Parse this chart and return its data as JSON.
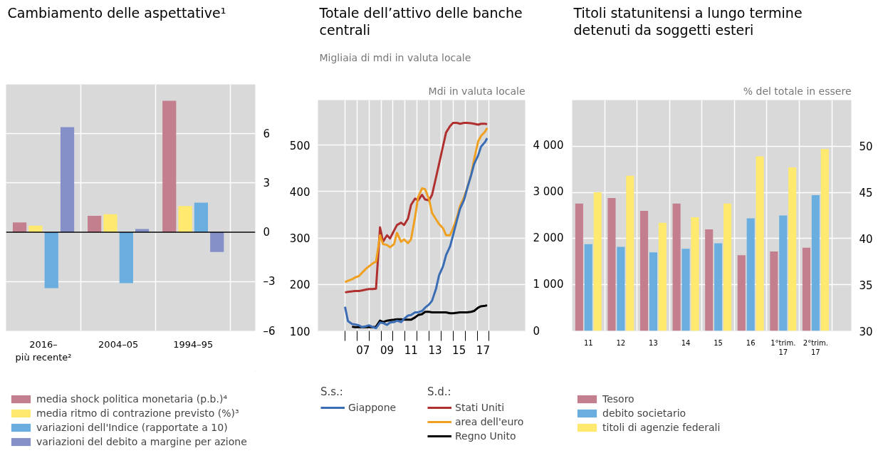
{
  "chart_data": [
    {
      "type": "bar",
      "title": "Cambiamento delle aspettative¹",
      "categories": [
        "2016–\npiù recente²",
        "2004–05",
        "1994–95"
      ],
      "series": [
        {
          "name": "media shock politica monetaria (p.b.)⁴",
          "color": "#c47f8f",
          "values": [
            0.6,
            1.0,
            8.0
          ]
        },
        {
          "name": "media ritmo di contrazione previsto (%)³",
          "color": "#ffe96e",
          "values": [
            0.4,
            1.1,
            1.6
          ]
        },
        {
          "name": "variazioni dell'Indice (rapportate a 10)",
          "color": "#6aaee0",
          "values": [
            -3.4,
            -3.1,
            1.8
          ]
        },
        {
          "name": "variazioni del debito a margine per azione",
          "color": "#8590c8",
          "values": [
            6.4,
            0.2,
            -1.2
          ]
        }
      ],
      "ylim": [
        -6,
        9
      ],
      "yticks": [
        {
          "value": -6,
          "label": "–6"
        },
        {
          "value": -3,
          "label": "–3"
        },
        0,
        3,
        6
      ],
      "grid": true,
      "legend": "bottom"
    },
    {
      "type": "line",
      "title": "Totale dell’attivo delle banche centrali",
      "ylabel": "Migliaia di mdi in valuta locale",
      "y2label": "Mdi in valuta locale",
      "annotations": [
        "S.s.:",
        "S.d.:"
      ],
      "x": [
        "2006-01",
        "2006-04",
        "2006-08",
        "2006-11",
        "2007-03",
        "2007-06",
        "2007-10",
        "2008-01",
        "2008-05",
        "2008-08",
        "2008-12",
        "2009-03",
        "2009-07",
        "2009-10",
        "2010-02",
        "2010-05",
        "2010-09",
        "2010-12",
        "2011-04",
        "2011-07",
        "2011-11",
        "2012-02",
        "2012-06",
        "2012-09",
        "2013-01",
        "2013-04",
        "2013-08",
        "2013-11",
        "2014-03",
        "2014-06",
        "2014-10",
        "2015-01",
        "2015-05",
        "2015-08",
        "2015-12",
        "2016-03",
        "2016-07",
        "2016-10",
        "2017-02",
        "2017-05",
        "2017-09",
        "2017-11"
      ],
      "series": [
        {
          "name": "Giappone",
          "color": "#3b6db5",
          "axis": "y",
          "values": [
            152,
            121,
            115,
            114,
            112,
            108,
            110,
            112,
            108,
            106,
            118,
            117,
            113,
            118,
            119,
            122,
            119,
            126,
            133,
            134,
            140,
            140,
            143,
            150,
            157,
            165,
            191,
            220,
            239,
            263,
            282,
            306,
            339,
            363,
            382,
            406,
            435,
            459,
            478,
            497,
            507,
            515
          ]
        },
        {
          "name": "Stati Uniti",
          "color": "#b03030",
          "axis": "y2",
          "values": [
            830,
            840,
            850,
            860,
            860,
            870,
            890,
            900,
            900,
            910,
            2230,
            1920,
            2060,
            1990,
            2160,
            2280,
            2330,
            2280,
            2420,
            2710,
            2850,
            2810,
            2930,
            2830,
            2810,
            2930,
            3310,
            3600,
            3980,
            4270,
            4410,
            4480,
            4480,
            4460,
            4480,
            4480,
            4470,
            4460,
            4440,
            4460,
            4460,
            4450
          ]
        },
        {
          "name": "area dell'euro",
          "color": "#f0a020",
          "axis": "y2",
          "values": [
            1050,
            1080,
            1110,
            1150,
            1180,
            1250,
            1340,
            1390,
            1460,
            1490,
            2060,
            1870,
            1850,
            1800,
            1870,
            2110,
            1920,
            1970,
            1890,
            1970,
            2450,
            2880,
            3070,
            3050,
            2830,
            2540,
            2400,
            2300,
            2210,
            2060,
            2060,
            2210,
            2450,
            2690,
            2880,
            3070,
            3360,
            3690,
            4080,
            4200,
            4290,
            4370
          ]
        },
        {
          "name": "Regno Unito",
          "color": "#000000",
          "axis": "y2",
          "values": [
            null,
            null,
            90,
            80,
            80,
            80,
            80,
            80,
            80,
            90,
            220,
            190,
            220,
            230,
            240,
            250,
            250,
            240,
            240,
            240,
            290,
            340,
            360,
            410,
            410,
            400,
            400,
            400,
            400,
            400,
            380,
            380,
            390,
            400,
            400,
            400,
            410,
            430,
            500,
            530,
            540,
            550
          ]
        }
      ],
      "xlim": [
        "2003-10",
        "2021-01"
      ],
      "xticks": [
        {
          "value": "2006-01-01",
          "label": null
        },
        {
          "value": "2007-01-01",
          "label": null
        },
        {
          "value": "2008-01-01",
          "label": null
        },
        {
          "value": "2009-01-01",
          "label": null
        },
        {
          "value": "2010-01-01",
          "label": null
        },
        {
          "value": "2011-01-01",
          "label": null
        },
        {
          "value": "2012-01-01",
          "label": null
        },
        {
          "value": "2013-01-01",
          "label": null
        },
        {
          "value": "2014-01-01",
          "label": null
        },
        {
          "value": "2015-01-01",
          "label": null
        },
        {
          "value": "2016-01-01",
          "label": null
        },
        {
          "value": "2017-01-01",
          "label": null
        },
        {
          "value": "2018-01-01",
          "label": null
        },
        {
          "value": "2007-07-01",
          "label": "07"
        },
        {
          "value": "2009-07-01",
          "label": "09"
        },
        {
          "value": "2011-07-01",
          "label": "11"
        },
        {
          "value": "2013-07-01",
          "label": "13"
        },
        {
          "value": "2015-07-01",
          "label": "15"
        },
        {
          "value": "2017-07-01",
          "label": "17"
        }
      ],
      "ylim": [
        100,
        597
      ],
      "yticks": [
        100,
        200,
        300,
        400,
        500
      ],
      "y2lim": [
        0,
        4970
      ],
      "y2ticks": [
        0,
        {
          "value": 1000,
          "label": "1 000"
        },
        {
          "value": 2000,
          "label": "2 000"
        },
        {
          "value": 3000,
          "label": "3 000"
        },
        {
          "value": 4000,
          "label": "4 000"
        }
      ],
      "grid": true,
      "legend": "bottom"
    },
    {
      "type": "bar",
      "title": "Titoli statunitensi a lungo termine detenuti da soggetti esteri",
      "ylabel": "% del totale in essere",
      "categories": [
        "11",
        "12",
        "13",
        "14",
        "15",
        "16",
        "1°trim.\n17",
        "2°trim.\n17"
      ],
      "series": [
        {
          "name": "Tesoro",
          "color": "#c47f8f",
          "values": [
            43.8,
            44.4,
            43.0,
            43.8,
            41.0,
            38.2,
            38.6,
            39.0
          ]
        },
        {
          "name": "debito societario",
          "color": "#6aaee0",
          "values": [
            39.4,
            39.1,
            38.5,
            38.9,
            39.5,
            42.2,
            42.5,
            44.7
          ]
        },
        {
          "name": "titoli di agenzie federali",
          "color": "#ffe96e",
          "values": [
            45.0,
            46.8,
            41.7,
            42.3,
            43.8,
            48.9,
            47.7,
            49.7
          ]
        }
      ],
      "ylim": [
        30,
        55
      ],
      "yticks": [
        30,
        35,
        40,
        45,
        50
      ],
      "grid": true,
      "legend": "bottom"
    }
  ]
}
